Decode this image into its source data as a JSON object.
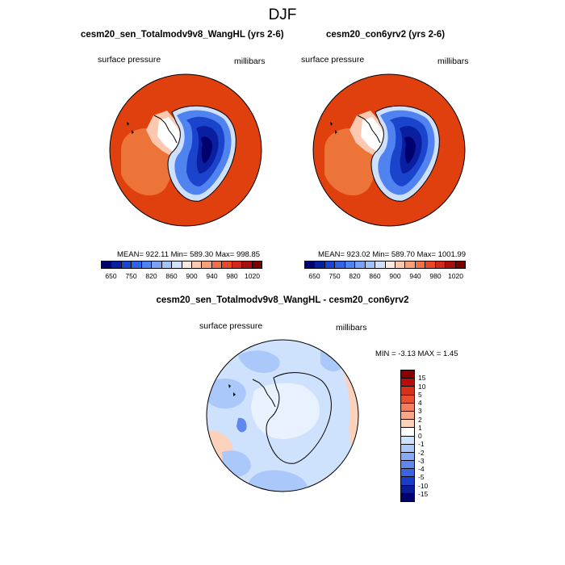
{
  "figure": {
    "title": "DJF"
  },
  "panels": [
    {
      "title": "cesm20_sen_Totalmodv9v8_WangHL (yrs 2-6)",
      "left_label": "surface pressure",
      "right_label": "millibars",
      "stats": "MEAN= 922.11   Min= 589.30   Max= 998.85"
    },
    {
      "title": "cesm20_con6yrv2 (yrs 2-6)",
      "left_label": "surface pressure",
      "right_label": "millibars",
      "stats": "MEAN= 923.02   Min= 589.70   Max= 1001.99"
    },
    {
      "title": "cesm20_sen_Totalmodv9v8_WangHL - cesm20_con6yrv2",
      "left_label": "surface pressure",
      "right_label": "millibars",
      "stats": "MIN =  -3.13 MAX =   1.45"
    }
  ],
  "colorbar_abs": {
    "colors": [
      "#00006e",
      "#0a1fa0",
      "#1a44cc",
      "#2f64e6",
      "#5082f0",
      "#78a2f6",
      "#a4c2fa",
      "#cfe0fd",
      "#fde8de",
      "#fcc8b0",
      "#f8a07a",
      "#f07048",
      "#e8482a",
      "#d02818",
      "#a80e0a",
      "#780000"
    ],
    "tick_labels": [
      "650",
      "750",
      "820",
      "860",
      "900",
      "940",
      "980",
      "1020"
    ]
  },
  "colorbar_diff": {
    "colors": [
      "#8b0000",
      "#b80e0a",
      "#d8301c",
      "#e85030",
      "#f08060",
      "#f8a888",
      "#fcd2bc",
      "#ffffff",
      "#cfe2fd",
      "#aac8fa",
      "#86aaf4",
      "#6088ec",
      "#3a64e0",
      "#1a3cc8",
      "#0a1c96",
      "#00006e"
    ],
    "tick_labels": [
      "15",
      "10",
      "5",
      "4",
      "3",
      "2",
      "1",
      "0",
      "-1",
      "-2",
      "-3",
      "-4",
      "-5",
      "-10",
      "-15"
    ]
  }
}
